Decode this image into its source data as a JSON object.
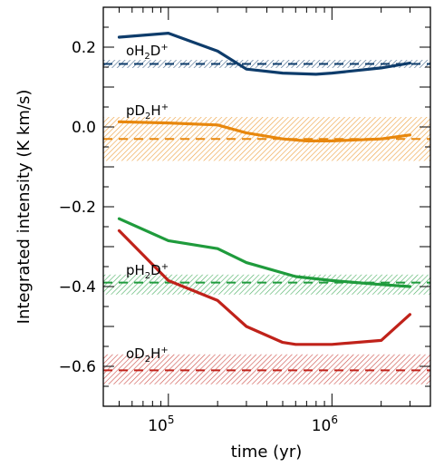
{
  "chart_data": {
    "type": "line",
    "title": "",
    "xlabel": "time (yr)",
    "ylabel": "Integrated intensity (K km/s)",
    "xscale": "log",
    "xlim": [
      40000,
      4000000
    ],
    "ylim": [
      -0.7,
      0.3
    ],
    "grid": false,
    "legend": "none",
    "x_ticks": [
      {
        "value": 100000,
        "base": "10",
        "exp": "5"
      },
      {
        "value": 1000000,
        "base": "10",
        "exp": "6"
      }
    ],
    "y_ticks": [
      {
        "value": 0.2,
        "label": "0.2"
      },
      {
        "value": 0.0,
        "label": "0.0"
      },
      {
        "value": -0.2,
        "label": "−0.2"
      },
      {
        "value": -0.4,
        "label": "−0.4"
      },
      {
        "value": -0.6,
        "label": "−0.6"
      }
    ],
    "series": [
      {
        "name": "oH2D+",
        "label": {
          "prefix": "oH",
          "sub": "2",
          "mid": "D",
          "sup": "+"
        },
        "label_anchor": {
          "x": 55000,
          "y": 0.18
        },
        "color": "#0e3c6b",
        "observed": 0.158,
        "band": [
          0.148,
          0.168
        ],
        "x": [
          50000,
          100000,
          200000,
          300000,
          500000,
          800000,
          1000000,
          2000000,
          3000000
        ],
        "y": [
          0.225,
          0.235,
          0.19,
          0.145,
          0.135,
          0.132,
          0.135,
          0.148,
          0.16
        ]
      },
      {
        "name": "pD2H+",
        "label": {
          "prefix": "pD",
          "sub": "2",
          "mid": "H",
          "sup": "+"
        },
        "label_anchor": {
          "x": 55000,
          "y": 0.03
        },
        "color": "#e8870c",
        "observed": -0.03,
        "band": [
          -0.085,
          0.025
        ],
        "x": [
          50000,
          100000,
          200000,
          300000,
          500000,
          700000,
          1000000,
          2000000,
          3000000
        ],
        "y": [
          0.013,
          0.01,
          0.005,
          -0.015,
          -0.03,
          -0.035,
          -0.035,
          -0.03,
          -0.02
        ]
      },
      {
        "name": "pH2D+",
        "label": {
          "prefix": "pH",
          "sub": "2",
          "mid": "D",
          "sup": "+"
        },
        "label_anchor": {
          "x": 55000,
          "y": -0.37
        },
        "color": "#1f9b3c",
        "observed": -0.39,
        "band": [
          -0.42,
          -0.37
        ],
        "x": [
          50000,
          100000,
          200000,
          300000,
          600000,
          1000000,
          2000000,
          3000000
        ],
        "y": [
          -0.23,
          -0.285,
          -0.305,
          -0.34,
          -0.375,
          -0.385,
          -0.395,
          -0.4
        ]
      },
      {
        "name": "oD2H+",
        "label": {
          "prefix": "oD",
          "sub": "2",
          "mid": "H",
          "sup": "+"
        },
        "label_anchor": {
          "x": 55000,
          "y": -0.58
        },
        "color": "#c0221a",
        "observed": -0.61,
        "band": [
          -0.645,
          -0.57
        ],
        "x": [
          50000,
          100000,
          200000,
          300000,
          500000,
          600000,
          700000,
          800000,
          1000000,
          2000000,
          3000000
        ],
        "y": [
          -0.26,
          -0.385,
          -0.435,
          -0.5,
          -0.54,
          -0.545,
          -0.545,
          -0.545,
          -0.545,
          -0.535,
          -0.47
        ]
      }
    ]
  }
}
